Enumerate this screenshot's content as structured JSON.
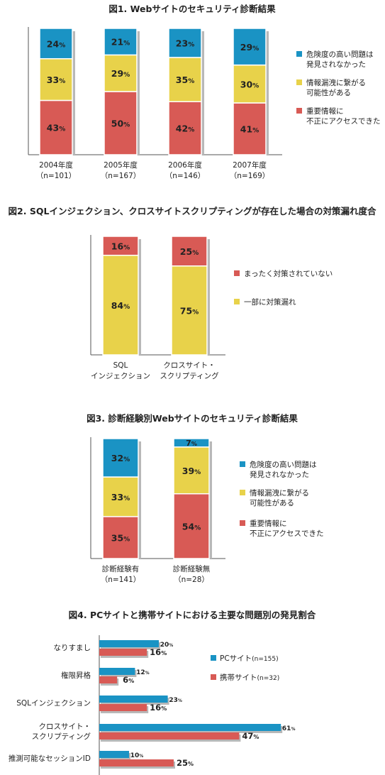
{
  "colors": {
    "blue": "#1a93c4",
    "yellow": "#e8d24a",
    "red": "#d85a55",
    "shadow": "#b8b8b8",
    "axis": "#555555"
  },
  "chart_data": [
    {
      "id": "fig1",
      "type": "bar",
      "stacked": true,
      "title": "図1. Webサイトのセキュリティ診断結果",
      "categories": [
        [
          "2004年度",
          "（n=101）"
        ],
        [
          "2005年度",
          "（n=167）"
        ],
        [
          "2006年度",
          "（n=146）"
        ],
        [
          "2007年度",
          "（n=169）"
        ]
      ],
      "series": [
        {
          "name": "重要情報に\n不正にアクセスできた",
          "color": "red",
          "values": [
            43,
            50,
            42,
            41
          ]
        },
        {
          "name": "情報漏洩に繋がる\n可能性がある",
          "color": "yellow",
          "values": [
            33,
            29,
            35,
            30
          ]
        },
        {
          "name": "危険度の高い問題は\n発見されなかった",
          "color": "blue",
          "values": [
            24,
            21,
            23,
            29
          ]
        }
      ],
      "legend_order": [
        2,
        1,
        0
      ],
      "legend_position": "right",
      "unit": "%"
    },
    {
      "id": "fig2",
      "type": "bar",
      "stacked": true,
      "title": "図2. SQLインジェクション、クロスサイトスクリプティングが存在した場合の対策漏れ度合",
      "categories": [
        [
          "SQL",
          "インジェクション"
        ],
        [
          "クロスサイト・",
          "スクリプティング"
        ]
      ],
      "series": [
        {
          "name": "一部に対策漏れ",
          "color": "yellow",
          "values": [
            84,
            75
          ]
        },
        {
          "name": "まったく対策されていない",
          "color": "red",
          "values": [
            16,
            25
          ]
        }
      ],
      "legend_order": [
        1,
        0
      ],
      "legend_position": "right",
      "unit": "%"
    },
    {
      "id": "fig3",
      "type": "bar",
      "stacked": true,
      "title": "図3. 診断経験別Webサイトのセキュリティ診断結果",
      "categories": [
        [
          "診断経験有",
          "（n=141）"
        ],
        [
          "診断経験無",
          "（n=28）"
        ]
      ],
      "series": [
        {
          "name": "重要情報に\n不正にアクセスできた",
          "color": "red",
          "values": [
            35,
            54
          ]
        },
        {
          "name": "情報漏洩に繋がる\n可能性がある",
          "color": "yellow",
          "values": [
            33,
            39
          ]
        },
        {
          "name": "危険度の高い問題は\n発見されなかった",
          "color": "blue",
          "values": [
            32,
            7
          ]
        }
      ],
      "legend_order": [
        2,
        1,
        0
      ],
      "legend_position": "right",
      "unit": "%"
    },
    {
      "id": "fig4",
      "type": "bar",
      "orientation": "horizontal",
      "title": "図4. PCサイトと携帯サイトにおける主要な問題別の発見割合",
      "categories": [
        [
          "なりすまし"
        ],
        [
          "権限昇格"
        ],
        [
          "SQLインジェクション"
        ],
        [
          "クロスサイト・",
          "スクリプティング"
        ],
        [
          "推測可能なセッションID"
        ]
      ],
      "series": [
        {
          "name": "PCサイト",
          "note": "(n=155)",
          "color": "blue",
          "values": [
            20,
            12,
            23,
            61,
            10
          ]
        },
        {
          "name": "携帯サイト",
          "note": "(n=32)",
          "color": "red",
          "values": [
            16,
            6,
            16,
            47,
            25
          ]
        }
      ],
      "legend_position": "right",
      "unit": "%"
    }
  ]
}
